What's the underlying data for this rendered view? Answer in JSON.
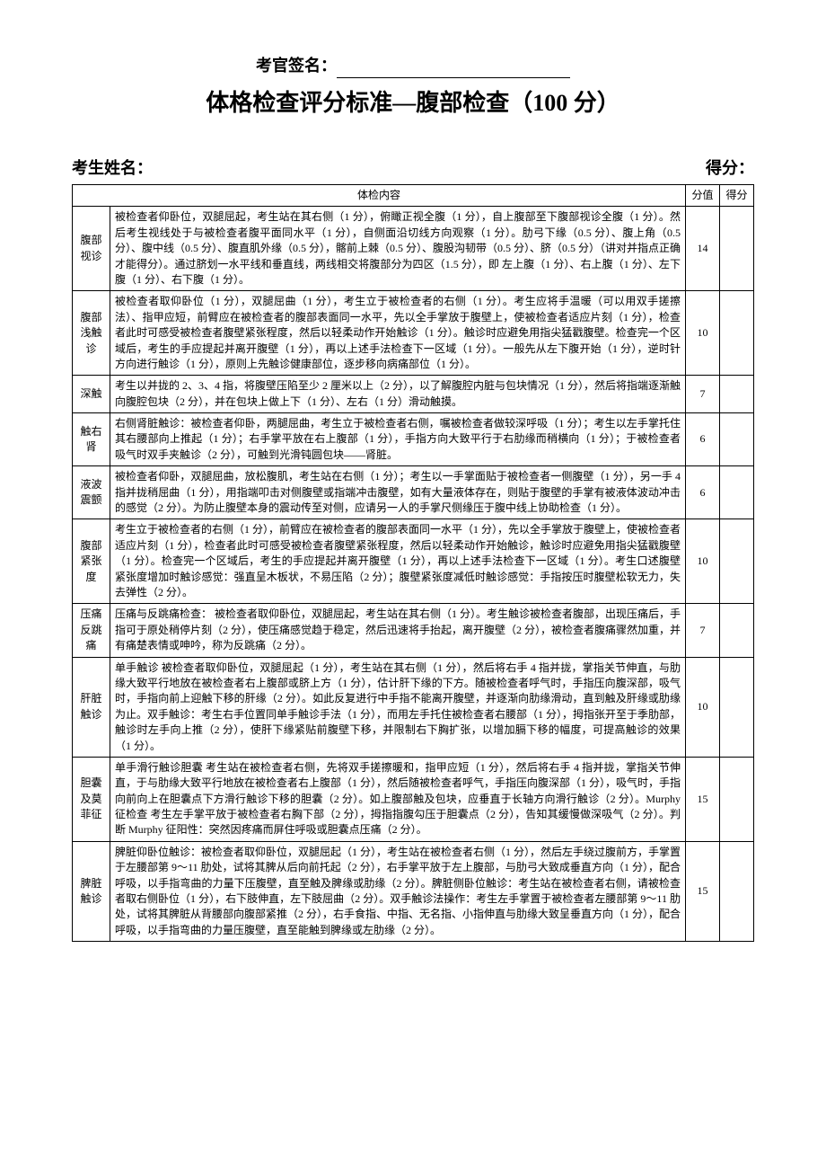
{
  "signature_label": "考官签名：",
  "title": "体格检查评分标准—腹部检查（100 分）",
  "candidate_label": "考生姓名：",
  "score_label": "得分：",
  "header": {
    "content": "体检内容",
    "score": "分值",
    "result": "得分"
  },
  "rows": [
    {
      "label": "腹部视诊",
      "score": "14",
      "content": "被检查者仰卧位，双腿屈起，考生站在其右侧（1 分），俯瞰正视全腹（1 分），自上腹部至下腹部视诊全腹（1 分）。然后考生视线处于与被检查者腹平面同水平（1 分），自侧面沿切线方向观察（1 分）。肋弓下缘（0.5 分）、腹上角（0.5 分）、腹中线（0.5 分）、腹直肌外缘（0.5 分），髂前上棘（0.5 分）、腹股沟韧带（0.5 分）、脐（0.5 分）（讲对并指点正确才能得分）。通过脐划一水平线和垂直线，两线相交将腹部分为四区（1.5 分），即 左上腹（1 分）、右上腹（1 分）、左下腹（1 分）、右下腹（1 分）。"
    },
    {
      "label": "腹部浅触诊",
      "score": "10",
      "content": "被检查者取仰卧位（1 分），双腿屈曲（1 分），考生立于被检查者的右侧（1 分）。考生应将手温暖（可以用双手搓擦法）、指甲应短，前臂应在被检查者的腹部表面同一水平，先以全手掌放于腹壁上，使被检查者适应片刻（1 分），检查者此时可感受被检查者腹壁紧张程度，然后以轻柔动作开始触诊（1 分）。触诊时应避免用指尖猛戳腹壁。检查完一个区域后，考生的手应提起并离开腹壁（1 分），再以上述手法检查下一区域（1 分）。一般先从左下腹开始（1 分），逆时针方向进行触诊（1 分），原则上先触诊健康部位，逐步移向病痛部位（1 分）。"
    },
    {
      "label": "深触",
      "score": "7",
      "content": "考生以并拢的 2、3、4 指，将腹壁压陷至少 2 厘米以上（2 分），以了解腹腔内脏与包块情况（1 分），然后将指端逐渐触向腹腔包块（2 分），并在包块上做上下（1 分）、左右（1 分）滑动触摸。"
    },
    {
      "label": "触右肾",
      "score": "6",
      "content": "右侧肾脏触诊：被检查者仰卧，两腿屈曲，考生立于被检查者右侧，嘱被检查者做较深呼吸（1 分）；考生以左手掌托住其右腰部向上推起（1 分）；右手掌平放在右上腹部（1 分），手指方向大致平行于右肋缘而稍横向（1 分）；于被检查者吸气时双手夹触诊（2 分），可触到光滑钝圆包块——肾脏。"
    },
    {
      "label": "液波震颤",
      "score": "6",
      "content": "被检查者仰卧，双腿屈曲，放松腹肌，考生站在右侧（1 分）；考生以一手掌面贴于被检查者一侧腹壁（1 分），另一手 4 指并拢稍屈曲（1 分），用指端叩击对侧腹壁或指端冲击腹壁，如有大量液体存在，则贴于腹壁的手掌有被液体波动冲击的感觉（2 分）。为防止腹壁本身的震动传至对侧，应请另一人的手掌尺侧缘压于腹中线上协助检查（1 分）。"
    },
    {
      "label": "腹部紧张度",
      "score": "10",
      "content": "考生立于被检查者的右侧（1 分），前臂应在被检查者的腹部表面同一水平（1 分），先以全手掌放于腹壁上，使被检查者适应片刻（1 分），检查者此时可感受被检查者腹壁紧张程度，然后以轻柔动作开始触诊，触诊时应避免用指尖猛戳腹壁（1 分）。检查完一个区域后，考生的手应提起并离开腹壁（1 分），再以上述手法检查下一区域（1 分）。考生口述腹壁紧张度增加时触诊感觉：强直呈木板状，不易压陷（2 分）；腹壁紧张度减低时触诊感觉：手指按压时腹壁松软无力，失去弹性（2 分）。"
    },
    {
      "label": "压痛反跳痛",
      "score": "7",
      "content": "压痛与反跳痛检查： 被检查者取仰卧位，双腿屈起，考生站在其右侧（1 分）。考生触诊被检查者腹部，出现压痛后，手指可于原处稍停片刻（2 分），使压痛感觉趋于稳定，然后迅速将手抬起，离开腹壁（2 分），被检查者腹痛骤然加重，并有痛楚表情或呻吟，称为反跳痛（2 分）。"
    },
    {
      "label": "肝脏触诊",
      "score": "10",
      "content": "单手触诊 被检查者取仰卧位，双腿屈起（1 分），考生站在其右侧（1 分），然后将右手 4 指并拢，掌指关节伸直，与肋缘大致平行地放在被检查者右上腹部或脐上方（1 分），估计肝下缘的下方。随被检查者呼气时，手指压向腹深部，吸气时，手指向前上迎触下移的肝缘（2 分）。如此反复进行中手指不能离开腹壁，并逐渐向肋缘滑动，直到触及肝缘或肋缘为止。双手触诊：考生右手位置同单手触诊手法（1 分），而用左手托住被检查者右腰部（1 分），拇指张开至于季肋部，触诊时左手向上推（2 分），使肝下缘紧贴前腹壁下移，并限制右下胸扩张，以增加膈下移的幅度，可提高触诊的效果（1 分）。"
    },
    {
      "label": "胆囊及莫菲征",
      "score": "15",
      "content": "单手滑行触诊胆囊 考生站在被检查者右侧，先将双手搓擦暖和，指甲应短（1 分），然后将右手 4 指并拢，掌指关节伸直，于与肋缘大致平行地放在被检查者右上腹部（1 分），然后随被检查者呼气，手指压向腹深部（1 分），吸气时，手指向前向上在胆囊点下方滑行触诊下移的胆囊（2 分）。如上腹部触及包块，应垂直于长轴方向滑行触诊（2 分）。Murphy 征检查 考生左手掌平放于被检查者右胸下部（2 分），拇指指腹勾压于胆囊点（2 分），告知其缓慢做深吸气（2 分）。判断 Murphy 征阳性：突然因疼痛而屏住呼吸或胆囊点压痛（2 分）。"
    },
    {
      "label": "脾脏触诊",
      "score": "15",
      "content": "脾脏仰卧位触诊：被检查者取仰卧位，双腿屈起（1 分），考生站在被检查者右侧（1 分），然后左手绕过腹前方，手掌置于左腰部第 9～11 肋处，试将其脾从后向前托起（2 分），右手掌平放于左上腹部，与肋弓大致成垂直方向（1 分），配合呼吸，以手指弯曲的力量下压腹壁，直至触及脾缘或肋缘（2 分）。脾脏侧卧位触诊：考生站在被检查者右侧，请被检查者取右侧卧位（1 分），右下肢伸直，左下肢屈曲（2 分）。双手触诊法操作：考生左手掌置于被检查者左腰部第 9～11 肋处，试将其脾脏从背腰部向腹部紧推（2 分），右手食指、中指、无名指、小指伸直与肋缘大致呈垂直方向（1 分），配合呼吸，以手指弯曲的力量压腹壁，直至能触到脾缘或左肋缘（2 分）。"
    }
  ]
}
